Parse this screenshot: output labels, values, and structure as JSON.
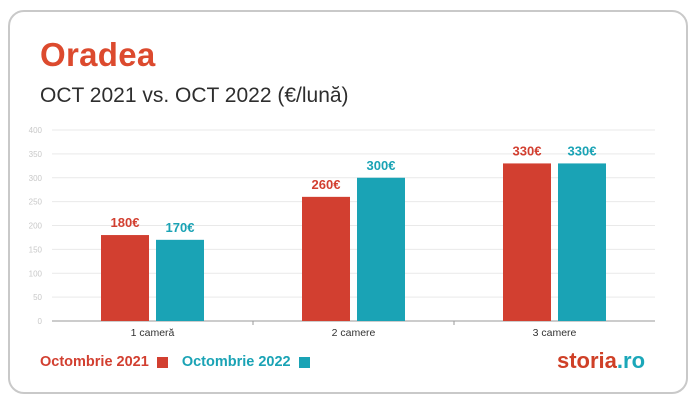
{
  "title": "Oradea",
  "subtitle": "OCT 2021 vs. OCT 2022 (€/lună)",
  "logo": {
    "text": "storia",
    "suffix": ".ro"
  },
  "colors": {
    "series1": "#d23f30",
    "series2": "#1aa3b5",
    "title": "#dc4a2e"
  },
  "chart_data": {
    "type": "bar",
    "title": "Oradea",
    "subtitle": "OCT 2021 vs. OCT 2022 (€/lună)",
    "xlabel": "",
    "ylabel": "",
    "categories": [
      "1 cameră",
      "2 camere",
      "3 camere"
    ],
    "series": [
      {
        "name": "Octombrie 2021",
        "values": [
          180,
          260,
          330
        ],
        "labels": [
          "180€",
          "260€",
          "330€"
        ],
        "color": "#d23f30"
      },
      {
        "name": "Octombrie 2022",
        "values": [
          170,
          300,
          330
        ],
        "labels": [
          "170€",
          "300€",
          "330€"
        ],
        "color": "#1aa3b5"
      }
    ],
    "ylim": [
      0,
      400
    ],
    "yticks": [
      0,
      50,
      100,
      150,
      200,
      250,
      300,
      350,
      400
    ],
    "grid": true,
    "legend": "bottom-left"
  }
}
